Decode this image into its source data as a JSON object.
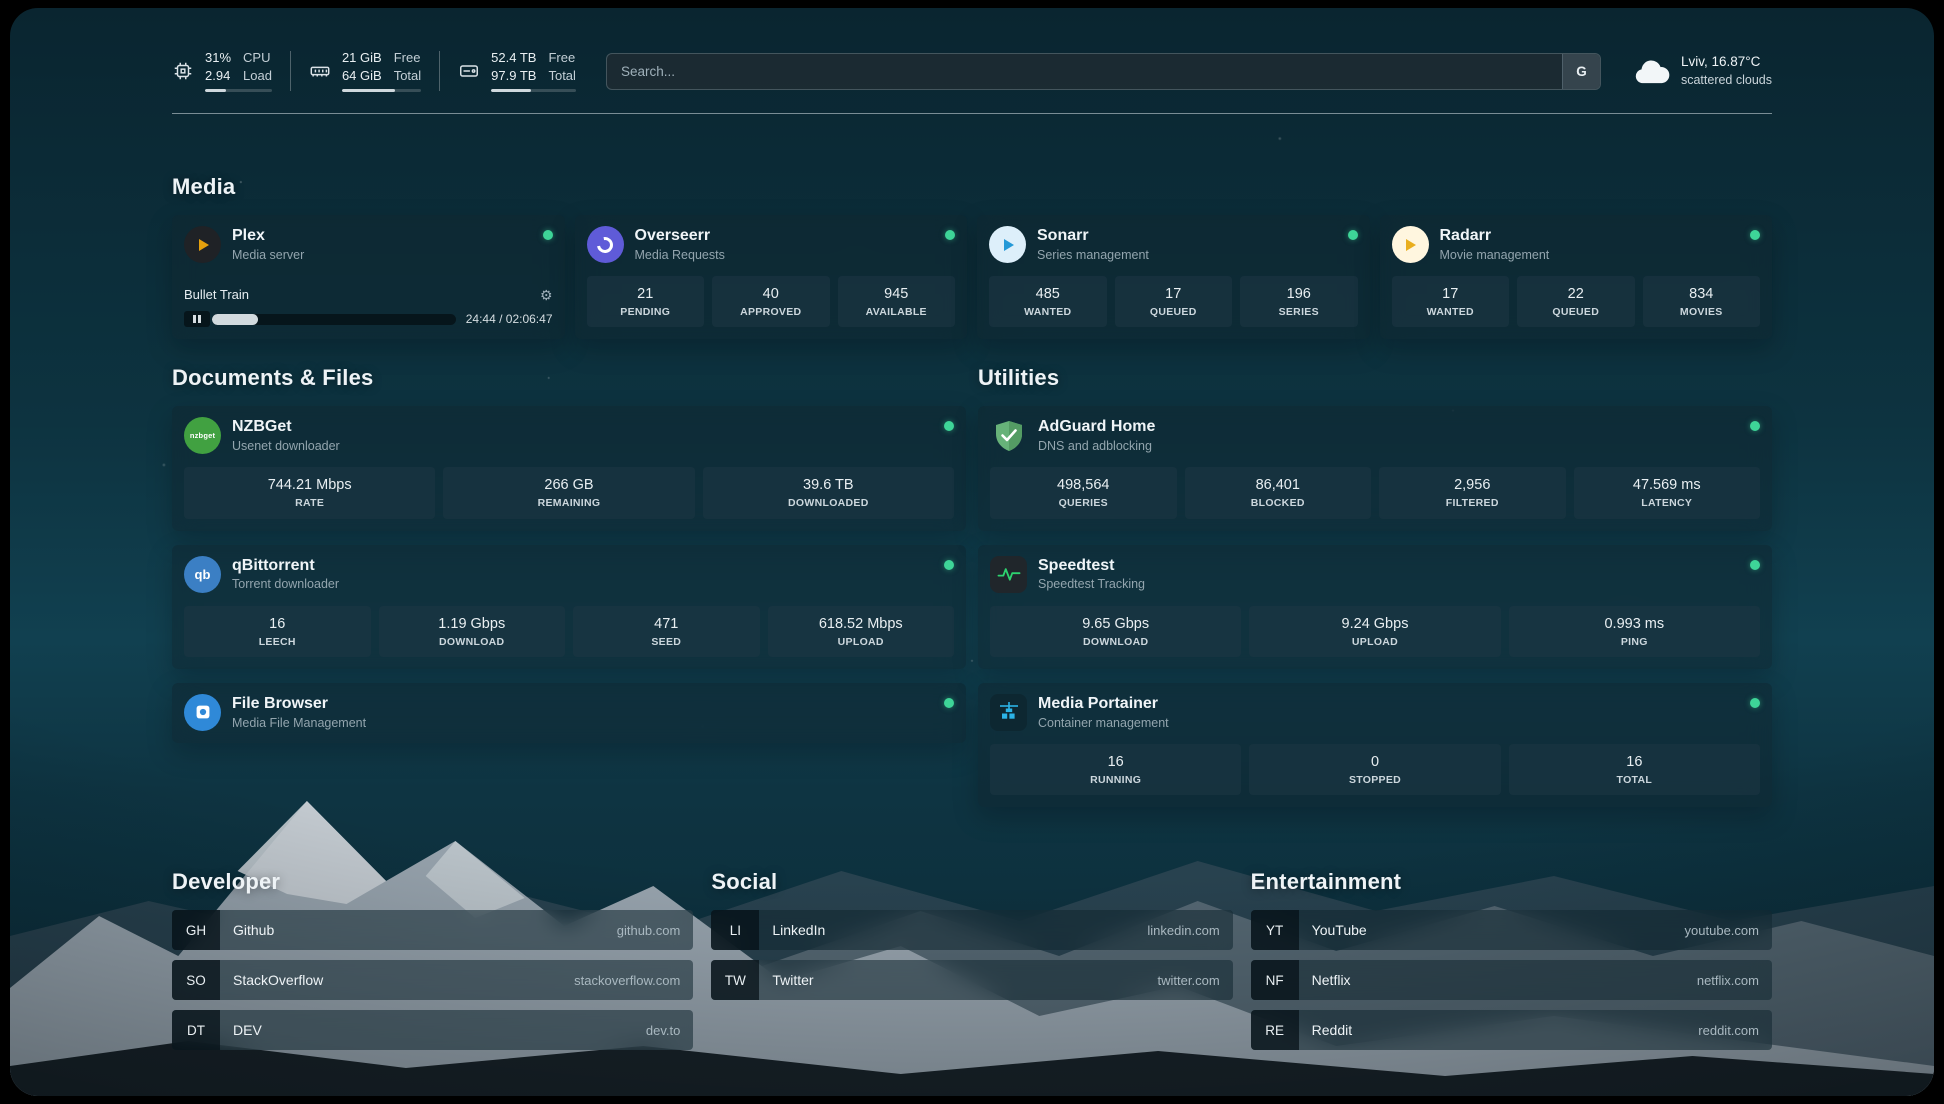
{
  "topbar": {
    "cpu": {
      "icon": "cpu-icon",
      "rows": [
        {
          "value": "31%",
          "label": "CPU"
        },
        {
          "value": "2.94",
          "label": "Load"
        }
      ],
      "usage_percent": 31
    },
    "memory": {
      "icon": "memory-icon",
      "rows": [
        {
          "value": "21 GiB",
          "label": "Free"
        },
        {
          "value": "64 GiB",
          "label": "Total"
        }
      ],
      "usage_percent": 67
    },
    "disk": {
      "icon": "disk-icon",
      "rows": [
        {
          "value": "52.4 TB",
          "label": "Free"
        },
        {
          "value": "97.9 TB",
          "label": "Total"
        }
      ],
      "usage_percent": 47
    },
    "search": {
      "placeholder": "Search...",
      "provider_button": "G"
    },
    "weather": {
      "icon": "cloud-icon",
      "location": "Lviv, 16.87°C",
      "condition": "scattered clouds"
    }
  },
  "colors": {
    "status_online": "#3ed598",
    "progress_fill": "#d2dade",
    "plex_accent": "#e5a00d",
    "adguard_green": "#67b279",
    "speedtest_pulse": "#2dd36f"
  },
  "sections": {
    "media": {
      "title": "Media",
      "services": [
        {
          "name": "Plex",
          "subtitle": "Media server",
          "icon": "plex-icon",
          "status": "online",
          "now_playing": {
            "title": "Bullet Train",
            "time": "24:44 / 02:06:47",
            "progress_percent": 19
          }
        },
        {
          "name": "Overseerr",
          "subtitle": "Media Requests",
          "icon": "overseerr-icon",
          "status": "online",
          "stats": [
            {
              "value": "21",
              "label": "PENDING"
            },
            {
              "value": "40",
              "label": "APPROVED"
            },
            {
              "value": "945",
              "label": "AVAILABLE"
            }
          ]
        },
        {
          "name": "Sonarr",
          "subtitle": "Series management",
          "icon": "sonarr-icon",
          "status": "online",
          "stats": [
            {
              "value": "485",
              "label": "WANTED"
            },
            {
              "value": "17",
              "label": "QUEUED"
            },
            {
              "value": "196",
              "label": "SERIES"
            }
          ]
        },
        {
          "name": "Radarr",
          "subtitle": "Movie management",
          "icon": "radarr-icon",
          "status": "online",
          "stats": [
            {
              "value": "17",
              "label": "WANTED"
            },
            {
              "value": "22",
              "label": "QUEUED"
            },
            {
              "value": "834",
              "label": "MOVIES"
            }
          ]
        }
      ]
    },
    "documents": {
      "title": "Documents & Files",
      "services": [
        {
          "name": "NZBGet",
          "subtitle": "Usenet downloader",
          "icon": "nzbget-icon",
          "icon_text": "nzbget",
          "status": "online",
          "stats": [
            {
              "value": "744.21 Mbps",
              "label": "RATE"
            },
            {
              "value": "266 GB",
              "label": "REMAINING"
            },
            {
              "value": "39.6 TB",
              "label": "DOWNLOADED"
            }
          ]
        },
        {
          "name": "qBittorrent",
          "subtitle": "Torrent downloader",
          "icon": "qbittorrent-icon",
          "icon_text": "qb",
          "status": "online",
          "stats": [
            {
              "value": "16",
              "label": "LEECH"
            },
            {
              "value": "1.19 Gbps",
              "label": "DOWNLOAD"
            },
            {
              "value": "471",
              "label": "SEED"
            },
            {
              "value": "618.52 Mbps",
              "label": "UPLOAD"
            }
          ]
        },
        {
          "name": "File Browser",
          "subtitle": "Media File Management",
          "icon": "filebrowser-icon",
          "status": "online",
          "stats": []
        }
      ]
    },
    "utilities": {
      "title": "Utilities",
      "services": [
        {
          "name": "AdGuard Home",
          "subtitle": "DNS and adblocking",
          "icon": "adguard-icon",
          "status": "online",
          "stats": [
            {
              "value": "498,564",
              "label": "QUERIES"
            },
            {
              "value": "86,401",
              "label": "BLOCKED"
            },
            {
              "value": "2,956",
              "label": "FILTERED"
            },
            {
              "value": "47.569 ms",
              "label": "LATENCY"
            }
          ]
        },
        {
          "name": "Speedtest",
          "subtitle": "Speedtest Tracking",
          "icon": "speedtest-icon",
          "status": "online",
          "stats": [
            {
              "value": "9.65 Gbps",
              "label": "DOWNLOAD"
            },
            {
              "value": "9.24 Gbps",
              "label": "UPLOAD"
            },
            {
              "value": "0.993 ms",
              "label": "PING"
            }
          ]
        },
        {
          "name": "Media Portainer",
          "subtitle": "Container management",
          "icon": "portainer-icon",
          "status": "online",
          "stats": [
            {
              "value": "16",
              "label": "RUNNING"
            },
            {
              "value": "0",
              "label": "STOPPED"
            },
            {
              "value": "16",
              "label": "TOTAL"
            }
          ]
        }
      ]
    }
  },
  "bookmarks": {
    "groups": [
      {
        "title": "Developer",
        "items": [
          {
            "abbr": "GH",
            "name": "Github",
            "url": "github.com"
          },
          {
            "abbr": "SO",
            "name": "StackOverflow",
            "url": "stackoverflow.com"
          },
          {
            "abbr": "DT",
            "name": "DEV",
            "url": "dev.to"
          }
        ]
      },
      {
        "title": "Social",
        "items": [
          {
            "abbr": "LI",
            "name": "LinkedIn",
            "url": "linkedin.com"
          },
          {
            "abbr": "TW",
            "name": "Twitter",
            "url": "twitter.com"
          }
        ]
      },
      {
        "title": "Entertainment",
        "items": [
          {
            "abbr": "YT",
            "name": "YouTube",
            "url": "youtube.com"
          },
          {
            "abbr": "NF",
            "name": "Netflix",
            "url": "netflix.com"
          },
          {
            "abbr": "RE",
            "name": "Reddit",
            "url": "reddit.com"
          }
        ]
      }
    ]
  }
}
